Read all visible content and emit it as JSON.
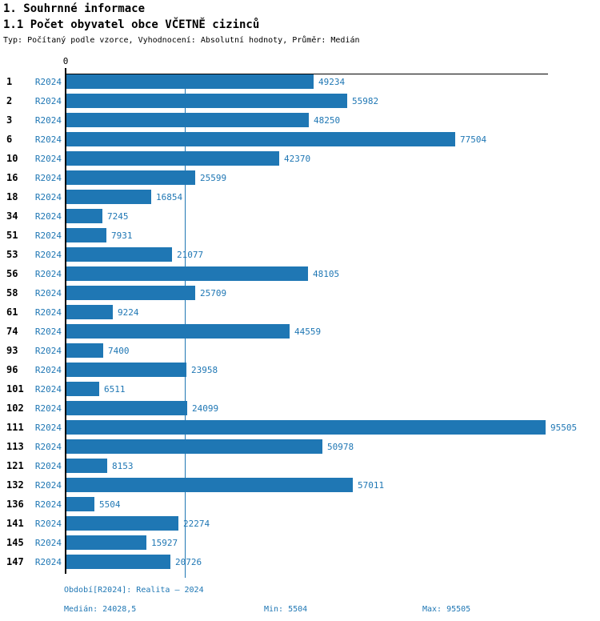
{
  "header": {
    "title1": "1. Souhrnné informace",
    "title2": "1.1 Počet obyvatel obce VČETNĚ cizinců",
    "subtitle": "Typ: Počítaný podle vzorce, Vyhodnocení: Absolutní hodnoty, Průměr: Medián"
  },
  "chart_data": {
    "type": "bar",
    "orientation": "horizontal",
    "title": "1.1 Počet obyvatel obce VČETNĚ cizinců",
    "series_label": "R2024",
    "categories": [
      "1",
      "2",
      "3",
      "6",
      "10",
      "16",
      "18",
      "34",
      "51",
      "53",
      "56",
      "58",
      "61",
      "74",
      "93",
      "96",
      "101",
      "102",
      "111",
      "113",
      "121",
      "132",
      "136",
      "141",
      "145",
      "147"
    ],
    "values": [
      49234,
      55982,
      48250,
      77504,
      42370,
      25599,
      16854,
      7245,
      7931,
      21077,
      48105,
      25709,
      9224,
      44559,
      7400,
      23958,
      6511,
      24099,
      95505,
      50978,
      8153,
      57011,
      5504,
      22274,
      15927,
      20726
    ],
    "xlim": [
      0,
      95505
    ],
    "x_tick_labels": [
      "0"
    ],
    "median_line": 24028.5,
    "bar_color": "#1f77b4",
    "grid": "median-line-only",
    "legend_position": "none",
    "value_labels": "right-of-bar"
  },
  "footer": {
    "period": "Období[R2024]: Realita – 2024",
    "median": "Medián: 24028,5",
    "min": "Min: 5504",
    "max": "Max: 95505"
  },
  "colors": {
    "accent": "#1f77b4",
    "text": "#000000",
    "background": "#ffffff"
  }
}
